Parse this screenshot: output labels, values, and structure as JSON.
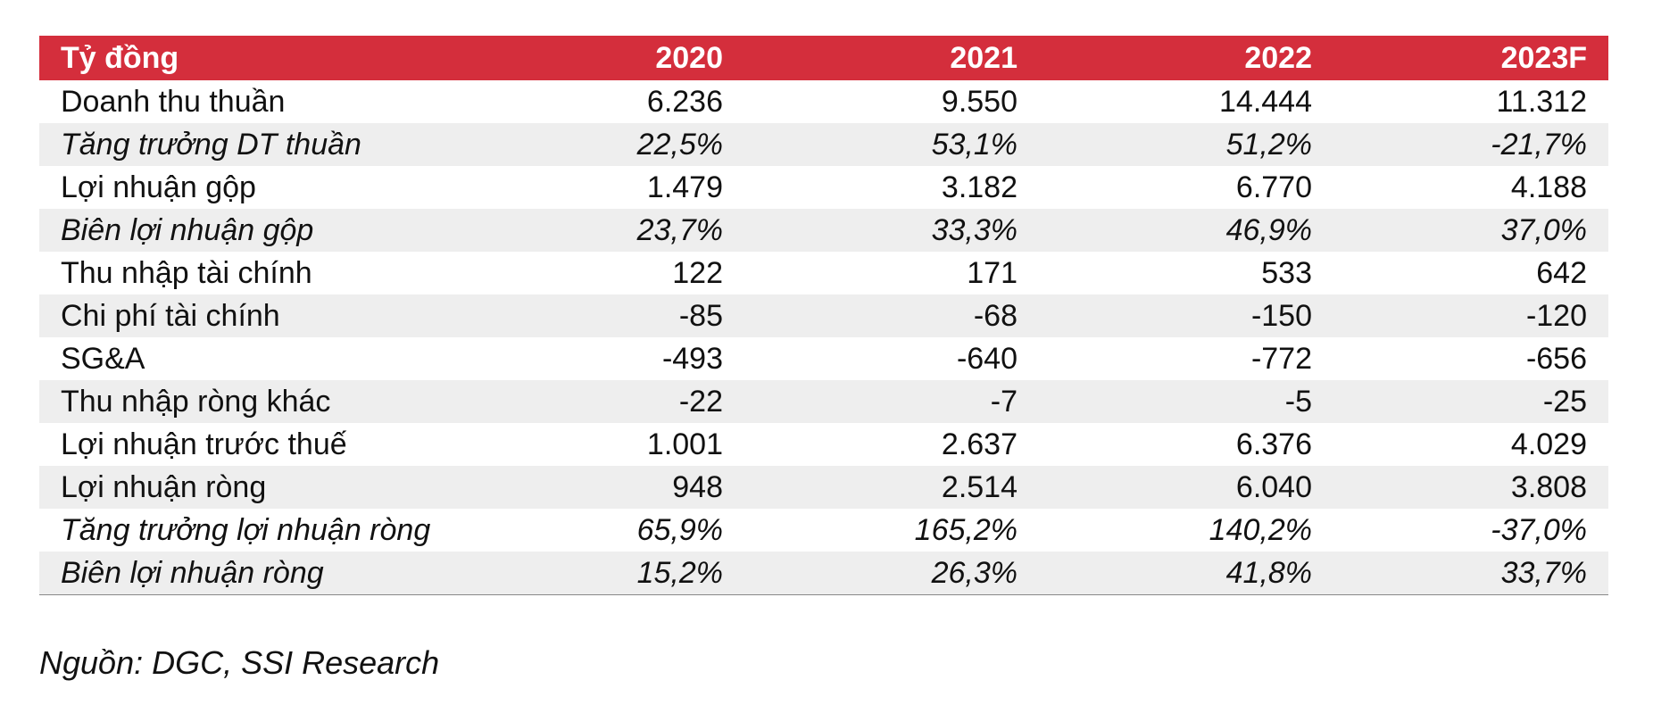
{
  "table": {
    "headers": [
      "Tỷ đồng",
      "2020",
      "2021",
      "2022",
      "2023F"
    ],
    "rows": [
      {
        "label": "Doanh thu thuần",
        "values": [
          "6.236",
          "9.550",
          "14.444",
          "11.312"
        ],
        "italic": false,
        "shaded": false
      },
      {
        "label": "Tăng trưởng DT thuần",
        "values": [
          "22,5%",
          "53,1%",
          "51,2%",
          "-21,7%"
        ],
        "italic": true,
        "shaded": true
      },
      {
        "label": "Lợi nhuận gộp",
        "values": [
          "1.479",
          "3.182",
          "6.770",
          "4.188"
        ],
        "italic": false,
        "shaded": false
      },
      {
        "label": "Biên lợi nhuận gộp",
        "values": [
          "23,7%",
          "33,3%",
          "46,9%",
          "37,0%"
        ],
        "italic": true,
        "shaded": true
      },
      {
        "label": "Thu nhập tài chính",
        "values": [
          "122",
          "171",
          "533",
          "642"
        ],
        "italic": false,
        "shaded": false
      },
      {
        "label": "Chi phí tài chính",
        "values": [
          "-85",
          "-68",
          "-150",
          "-120"
        ],
        "italic": false,
        "shaded": true
      },
      {
        "label": "SG&A",
        "values": [
          "-493",
          "-640",
          "-772",
          "-656"
        ],
        "italic": false,
        "shaded": false
      },
      {
        "label": "Thu nhập ròng khác",
        "values": [
          "-22",
          "-7",
          "-5",
          "-25"
        ],
        "italic": false,
        "shaded": true
      },
      {
        "label": "Lợi nhuận trước thuế",
        "values": [
          "1.001",
          "2.637",
          "6.376",
          "4.029"
        ],
        "italic": false,
        "shaded": false
      },
      {
        "label": "Lợi nhuận ròng",
        "values": [
          "948",
          "2.514",
          "6.040",
          "3.808"
        ],
        "italic": false,
        "shaded": true
      },
      {
        "label": "Tăng trưởng lợi nhuận ròng",
        "values": [
          "65,9%",
          "165,2%",
          "140,2%",
          "-37,0%"
        ],
        "italic": true,
        "shaded": false
      },
      {
        "label": "Biên lợi nhuận ròng",
        "values": [
          "15,2%",
          "26,3%",
          "41,8%",
          "33,7%"
        ],
        "italic": true,
        "shaded": true
      }
    ]
  },
  "source": "Nguồn: DGC, SSI Research",
  "colors": {
    "header_bg": "#d42e3c",
    "header_text": "#ffffff",
    "row_shade": "#eeeeee"
  }
}
